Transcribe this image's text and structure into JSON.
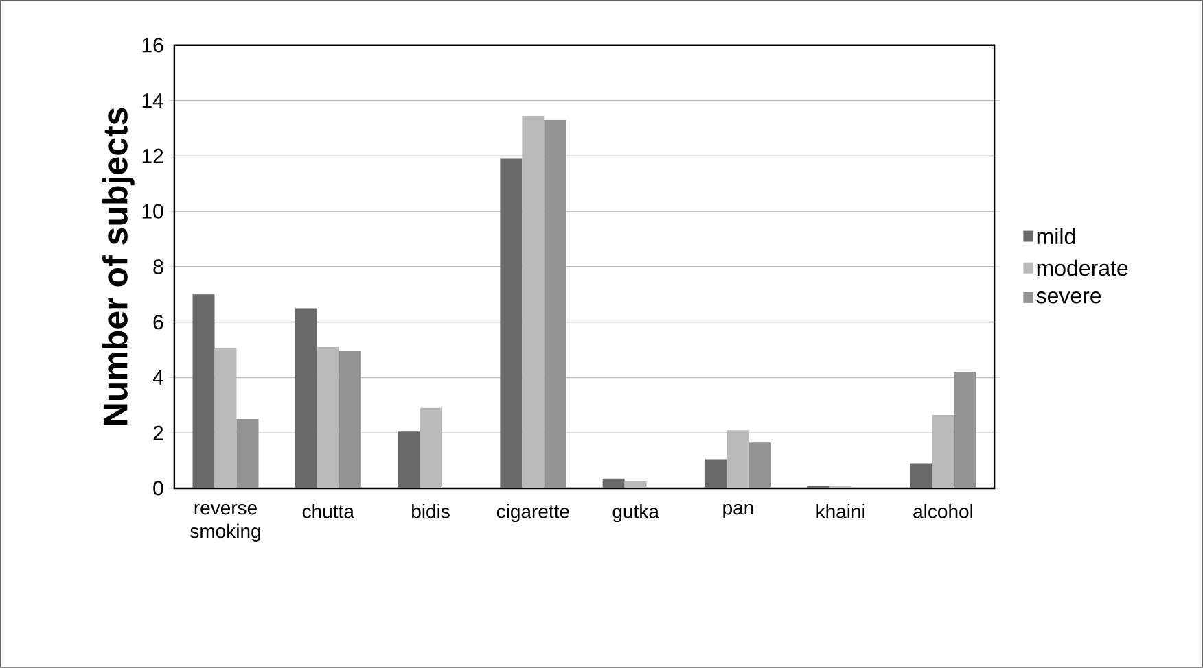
{
  "chart_data": {
    "type": "bar",
    "ylabel": "Number of subjects",
    "categories": [
      "reverse smoking",
      "chutta",
      "bidis",
      "cigarette",
      "gutka",
      "pan",
      "khaini",
      "alcohol"
    ],
    "series": [
      {
        "name": "mild",
        "color": "#696969",
        "values": [
          7,
          6.5,
          2.05,
          11.9,
          0.35,
          1.05,
          0.1,
          0.9
        ]
      },
      {
        "name": "moderate",
        "color": "#bababa",
        "values": [
          5.05,
          5.1,
          2.9,
          13.45,
          0.25,
          2.1,
          0.08,
          2.65
        ]
      },
      {
        "name": "severe",
        "color": "#939393",
        "values": [
          2.5,
          4.95,
          0,
          13.3,
          0,
          1.65,
          0,
          4.2
        ]
      }
    ],
    "ylim": [
      0,
      16
    ],
    "yticks": [
      0,
      2,
      4,
      6,
      8,
      10,
      12,
      14,
      16
    ],
    "grid": "y",
    "legend": "right"
  }
}
